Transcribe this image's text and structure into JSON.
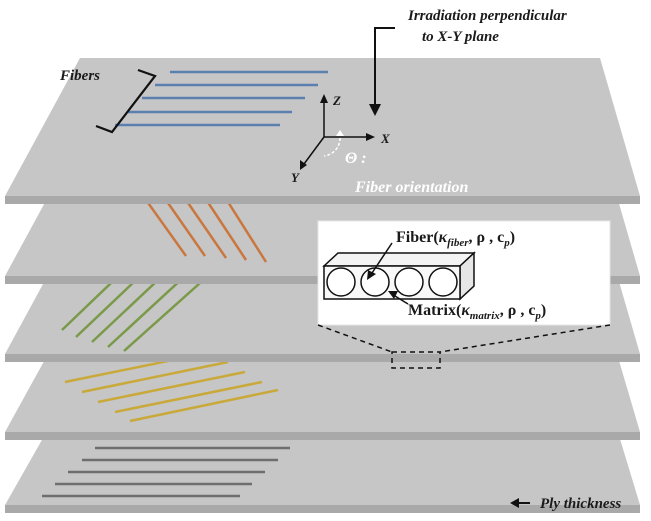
{
  "labels": {
    "irradiation_line1": "Irradiation perpendicular",
    "irradiation_line2": "to X-Y plane",
    "fibers": "Fibers",
    "axis_z": "Z",
    "axis_x": "X",
    "axis_y": "Y",
    "theta": "Θ :",
    "fiber_orientation": "Fiber orientation",
    "ply_thickness": "Ply thickness"
  },
  "inset": {
    "fiber_label": {
      "prefix": "Fiber(",
      "kappa": "κ",
      "kappa_sub": "fiber",
      "rest": ", ρ , c",
      "cp_sub": "p",
      "close": ")"
    },
    "matrix_label": {
      "prefix": "Matrix(",
      "kappa": "κ",
      "kappa_sub": "matrix",
      "rest": ", ρ , c",
      "cp_sub": "p",
      "close": ")"
    }
  },
  "colors": {
    "ply_top": "#c6c6c6",
    "ply_edge": "#a9a9a9",
    "fiber_blue": "#5b7fae",
    "fiber_orange": "#c9773f",
    "fiber_green": "#7a9a4a",
    "fiber_yellow": "#c9a93a",
    "fiber_gray": "#6e6e6e"
  }
}
